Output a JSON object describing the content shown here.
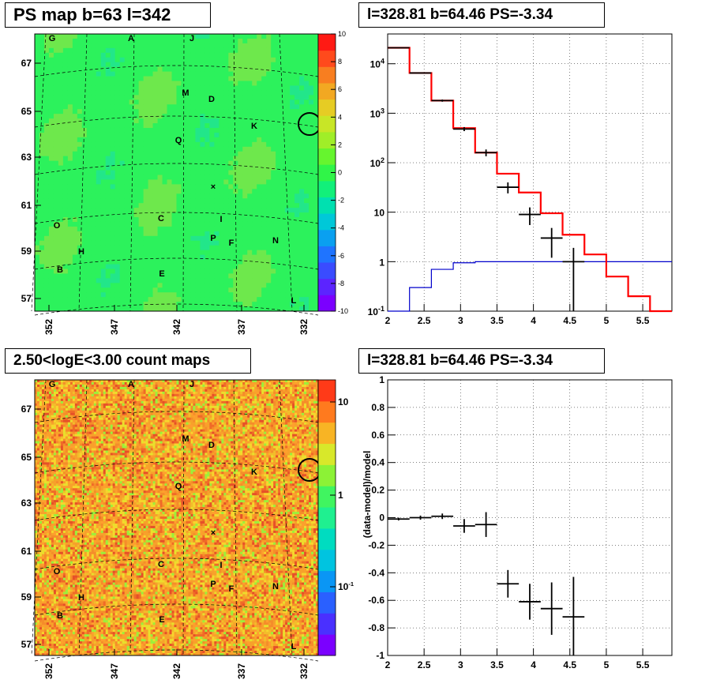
{
  "chart_data": [
    {
      "type": "heatmap",
      "title": "PS map b=63 l=342",
      "xticks": [
        "352",
        "347",
        "342",
        "337",
        "332"
      ],
      "yticks": [
        "67",
        "65",
        "63",
        "61",
        "59",
        "57"
      ],
      "colorbar_ticks": [
        "10",
        "8",
        "6",
        "4",
        "2",
        "0",
        "-2",
        "-4",
        "-6",
        "-8",
        "-10"
      ],
      "zlim": [
        -10,
        10
      ],
      "source_labels": [
        "G",
        "A",
        "J",
        "M",
        "D",
        "K",
        "Q",
        "C",
        "I",
        "O",
        "H",
        "P",
        "F",
        "N",
        "B",
        "E",
        "L"
      ],
      "center_marker": "×",
      "circle": "l=332 b=64.5"
    },
    {
      "type": "line",
      "title": "l=328.81 b=64.46 PS=-3.34",
      "xlabel": "",
      "ylabel": "",
      "xlim": [
        2,
        5.9
      ],
      "ylim": [
        0.1,
        40000
      ],
      "ylog": true,
      "xticks": [
        "2",
        "2.5",
        "3",
        "3.5",
        "4",
        "4.5",
        "5",
        "5.5"
      ],
      "yticks": [
        "10^-1",
        "1",
        "10",
        "10^2",
        "10^3",
        "10^4"
      ],
      "grid": true,
      "series": [
        {
          "kind": "model_total",
          "color": "#ff0000",
          "edges": [
            2,
            2.3,
            2.6,
            2.9,
            3.2,
            3.5,
            3.8,
            4.1,
            4.4,
            4.7,
            5.0,
            5.3,
            5.6,
            5.9
          ],
          "values": [
            21000,
            6500,
            1800,
            500,
            160,
            60,
            25,
            9.5,
            3.5,
            1.4,
            0.5,
            0.2,
            0.08
          ]
        },
        {
          "kind": "ps_component",
          "color": "#0000cc",
          "edges": [
            2,
            2.3,
            2.6,
            2.9,
            3.2,
            3.5,
            3.8,
            4.1,
            4.4,
            4.7,
            5.0,
            5.3,
            5.6,
            5.9
          ],
          "values": [
            0.1,
            0.3,
            0.7,
            0.95,
            1,
            1,
            1,
            1,
            1,
            1,
            1,
            1,
            1
          ]
        },
        {
          "kind": "data",
          "color": "#000000",
          "points": [
            [
              2.15,
              21000,
              0.15,
              300
            ],
            [
              2.45,
              6500,
              0.15,
              150
            ],
            [
              2.75,
              1800,
              0.15,
              90
            ],
            [
              3.05,
              480,
              0.15,
              45
            ],
            [
              3.35,
              160,
              0.15,
              25
            ],
            [
              3.65,
              32,
              0.15,
              8
            ],
            [
              3.95,
              9,
              0.15,
              3.5
            ],
            [
              4.25,
              3,
              0.15,
              1.8
            ],
            [
              4.55,
              1,
              0.15,
              0.9
            ]
          ]
        }
      ]
    },
    {
      "type": "heatmap",
      "title": "2.50<logE<3.00 count maps",
      "xticks": [
        "352",
        "347",
        "342",
        "337",
        "332"
      ],
      "yticks": [
        "67",
        "65",
        "63",
        "61",
        "59",
        "57"
      ],
      "colorbar_ticks": [
        "10",
        "1",
        "10^-1"
      ],
      "zlog": true,
      "source_labels": [
        "G",
        "A",
        "J",
        "M",
        "D",
        "K",
        "Q",
        "C",
        "I",
        "O",
        "H",
        "P",
        "F",
        "N",
        "B",
        "E",
        "L"
      ]
    },
    {
      "type": "scatter",
      "title": "l=328.81 b=64.46 PS=-3.34",
      "xlabel": "",
      "ylabel": "(data-model)/model",
      "xlim": [
        2,
        5.9
      ],
      "ylim": [
        -1,
        1
      ],
      "xticks": [
        "2",
        "2.5",
        "3",
        "3.5",
        "4",
        "4.5",
        "5",
        "5.5"
      ],
      "yticks": [
        "1",
        "0.8",
        "0.6",
        "0.4",
        "0.2",
        "0",
        "-0.2",
        "-0.4",
        "-0.6",
        "-0.8",
        "-1"
      ],
      "grid": true,
      "points": [
        [
          2.15,
          -0.01,
          0.15,
          0.01
        ],
        [
          2.45,
          0.0,
          0.15,
          0.015
        ],
        [
          2.75,
          0.01,
          0.15,
          0.02
        ],
        [
          3.05,
          -0.06,
          0.15,
          0.05
        ],
        [
          3.35,
          -0.05,
          0.15,
          0.09
        ],
        [
          3.65,
          -0.48,
          0.15,
          0.1
        ],
        [
          3.95,
          -0.61,
          0.15,
          0.13
        ],
        [
          4.25,
          -0.66,
          0.15,
          0.19
        ],
        [
          4.55,
          -0.72,
          0.15,
          0.29
        ]
      ]
    }
  ]
}
